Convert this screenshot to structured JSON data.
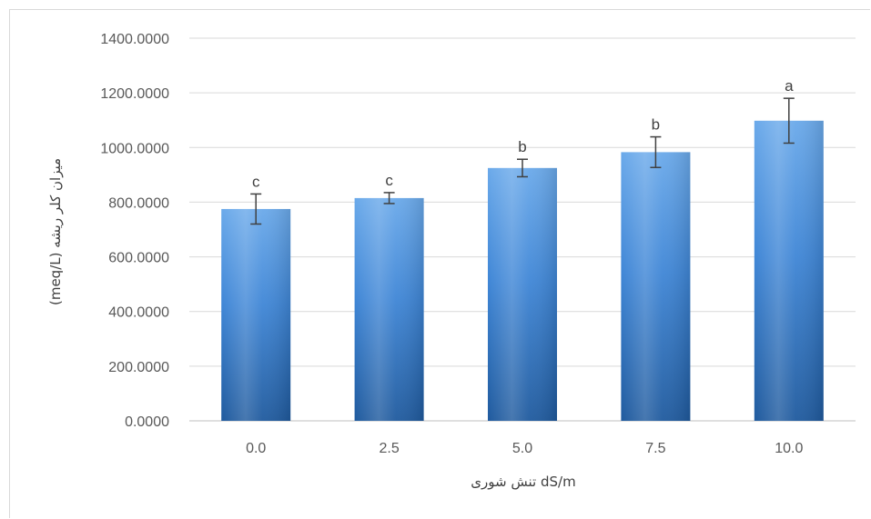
{
  "chart_data": {
    "type": "bar",
    "title": "",
    "xlabel": "dS/m تنش شوری",
    "ylabel": "میزان کلر ریشه (meq/L)",
    "categories": [
      "0.0",
      "2.5",
      "5.0",
      "7.5",
      "10.0"
    ],
    "values": [
      775,
      815,
      925,
      983,
      1098
    ],
    "error": [
      55,
      20,
      32,
      56,
      82
    ],
    "significance": [
      "c",
      "c",
      "b",
      "b",
      "a"
    ],
    "ylim": [
      0,
      1400
    ],
    "yticks": [
      "0.0000",
      "200.0000",
      "400.0000",
      "600.0000",
      "800.0000",
      "1000.0000",
      "1200.0000",
      "1400.0000"
    ],
    "grid": true,
    "legend": "none",
    "colors": {
      "bar_top": "#6aa9ea",
      "bar_mid": "#3f86d6",
      "bar_bottom": "#1f5a9e",
      "grid": "#d9d9d9",
      "error_bar": "#404040"
    }
  }
}
